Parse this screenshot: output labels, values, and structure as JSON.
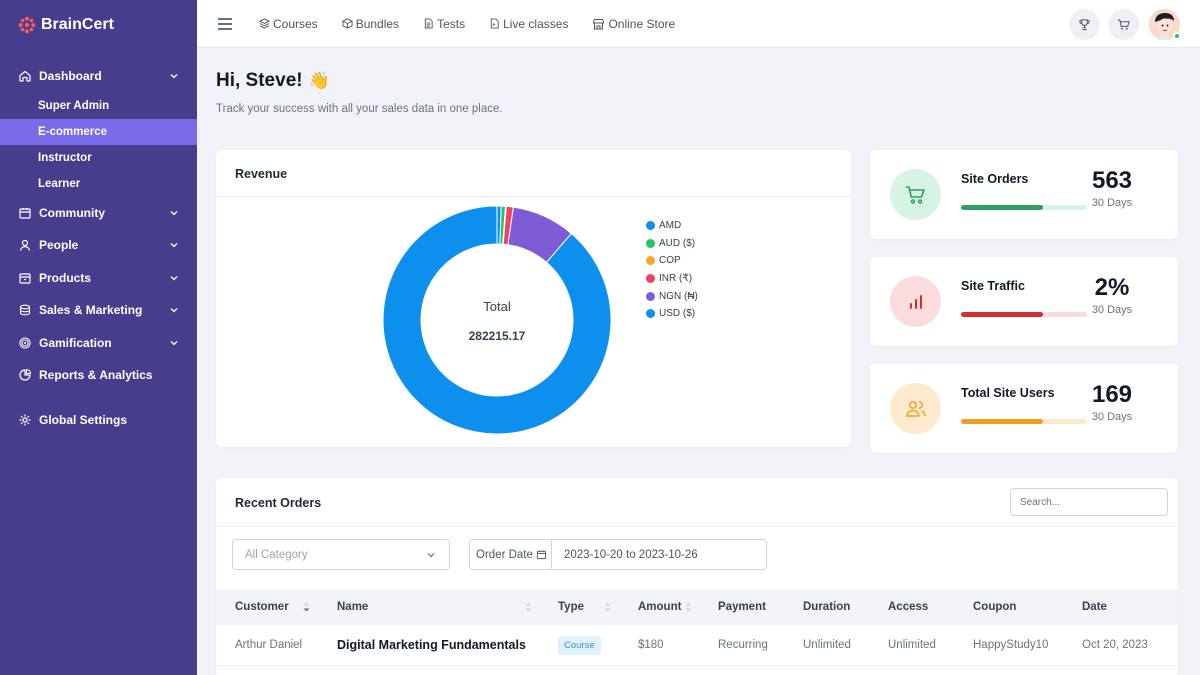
{
  "brand": {
    "name": "BrainCert"
  },
  "sidebar": {
    "items": [
      {
        "label": "Dashboard",
        "icon": "home-icon",
        "expandable": true
      },
      {
        "label": "Community",
        "icon": "calendar-icon",
        "expandable": true
      },
      {
        "label": "People",
        "icon": "user-icon",
        "expandable": true
      },
      {
        "label": "Products",
        "icon": "box-icon",
        "expandable": true
      },
      {
        "label": "Sales & Marketing",
        "icon": "coins-icon",
        "expandable": true
      },
      {
        "label": "Gamification",
        "icon": "target-icon",
        "expandable": true
      },
      {
        "label": "Reports & Analytics",
        "icon": "pie-chart-icon",
        "expandable": false
      },
      {
        "label": "Global Settings",
        "icon": "gear-icon",
        "expandable": false
      }
    ],
    "dashboard_sub": [
      "Super Admin",
      "E-commerce",
      "Instructor",
      "Learner"
    ],
    "active_sub": "E-commerce"
  },
  "topbar": {
    "links": [
      {
        "label": "Courses",
        "icon": "layers-icon"
      },
      {
        "label": "Bundles",
        "icon": "cube-icon"
      },
      {
        "label": "Tests",
        "icon": "document-icon"
      },
      {
        "label": "Live classes",
        "icon": "video-doc-icon"
      },
      {
        "label": "Online Store",
        "icon": "store-icon"
      }
    ]
  },
  "greeting": {
    "title": "Hi, Steve!",
    "emoji": "👋",
    "subtitle": "Track your success with all your sales data in one place."
  },
  "revenue": {
    "title": "Revenue",
    "total_label": "Total",
    "total_value": "282215.17"
  },
  "chart_data": {
    "type": "pie",
    "categories": [
      "AMD",
      "AUD ($)",
      "COP",
      "INR (₹)",
      "NGN (₦)",
      "USD ($)"
    ],
    "values": [
      0.6,
      0.6,
      0.1,
      1.0,
      9.0,
      88.7
    ],
    "colors": [
      "#0d8fee",
      "#22c55e",
      "#f5a623",
      "#ef4461",
      "#7d5cd6",
      "#0d8fee"
    ],
    "title": "Revenue",
    "legend": "right",
    "center_label": "Total",
    "center_value": "282215.17"
  },
  "stats": [
    {
      "title": "Site Orders",
      "value": "563",
      "sub": "30 Days",
      "icon": "cart-icon",
      "color": "#2e9e63",
      "bg": "#d7f3e4",
      "track": "#d7f3e4",
      "progress": 0.65
    },
    {
      "title": "Site Traffic",
      "value": "2%",
      "sub": "30 Days",
      "icon": "bar-chart-icon",
      "color": "#d32f2f",
      "bg": "#fbdcdc",
      "track": "#fbdcdc",
      "progress": 0.65
    },
    {
      "title": "Total Site Users",
      "value": "169",
      "sub": "30 Days",
      "icon": "users-icon",
      "color": "#f0a020",
      "bg": "#fde9cc",
      "track": "#fde9cc",
      "progress": 0.65
    }
  ],
  "orders": {
    "title": "Recent Orders",
    "search_placeholder": "Search...",
    "category_placeholder": "All Category",
    "date_label": "Order Date",
    "date_range": "2023-10-20 to 2023-10-26",
    "columns": [
      "Customer",
      "Name",
      "Type",
      "Amount",
      "Payment",
      "Duration",
      "Access",
      "Coupon",
      "Date"
    ],
    "rows": [
      {
        "customer": "Arthur Daniel",
        "name": "Digital Marketing Fundamentals",
        "type": "Course",
        "amount": "$180",
        "payment": "Recurring",
        "duration": "Unlimited",
        "access": "Unlimited",
        "coupon": "HappyStudy10",
        "date": "Oct 20, 2023"
      }
    ]
  }
}
